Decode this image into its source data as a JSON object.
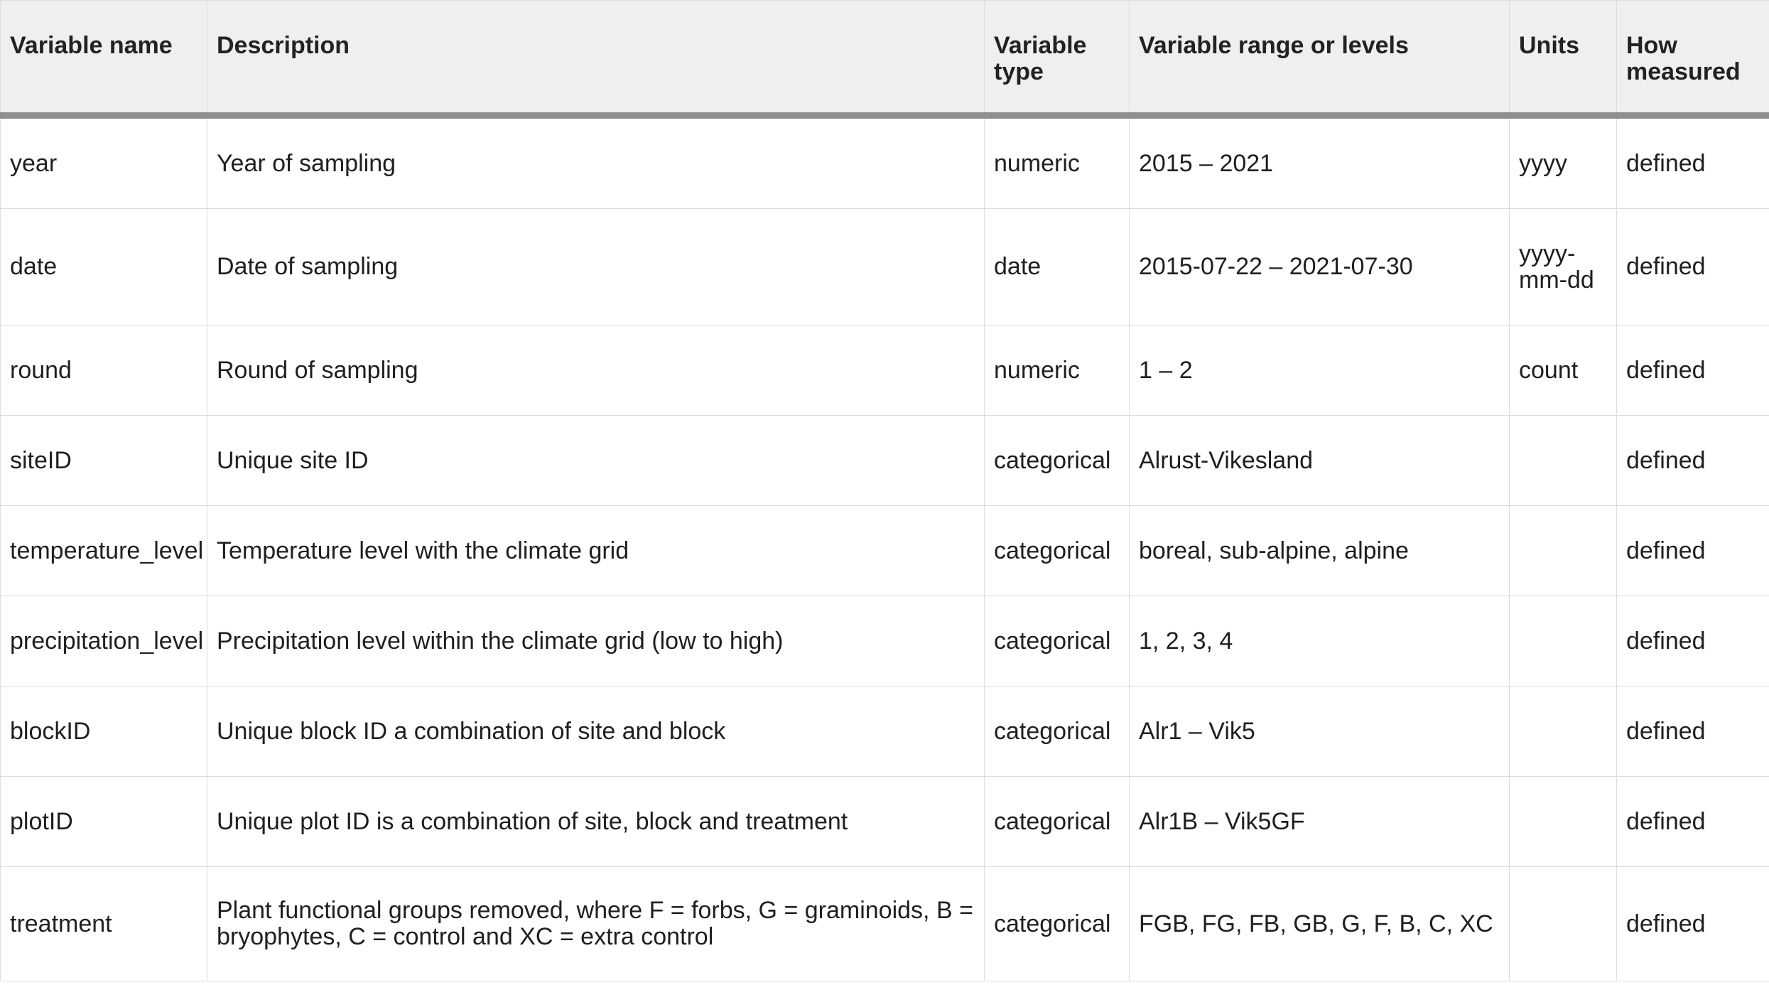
{
  "headers": {
    "variable_name": "Variable name",
    "description": "Description",
    "variable_type": "Variable type",
    "range": "Variable range or levels",
    "units": "Units",
    "how_measured": "How measured"
  },
  "rows": [
    {
      "name": "year",
      "description": "Year of sampling",
      "type": "numeric",
      "range": "2015 – 2021",
      "units": "yyyy",
      "how": "defined"
    },
    {
      "name": "date",
      "description": "Date of sampling",
      "type": "date",
      "range": "2015-07-22 – 2021-07-30",
      "units": "yyyy-mm-dd",
      "how": "defined"
    },
    {
      "name": "round",
      "description": "Round of sampling",
      "type": "numeric",
      "range": "1 – 2",
      "units": "count",
      "how": "defined"
    },
    {
      "name": "siteID",
      "description": "Unique site ID",
      "type": "categorical",
      "range": "Alrust-Vikesland",
      "units": "",
      "how": "defined"
    },
    {
      "name": "temperature_level",
      "description": "Temperature level with the climate grid",
      "type": "categorical",
      "range": "boreal, sub-alpine, alpine",
      "units": "",
      "how": "defined"
    },
    {
      "name": "precipitation_level",
      "description": "Precipitation level within the climate grid (low to high)",
      "type": "categorical",
      "range": "1, 2, 3, 4",
      "units": "",
      "how": "defined"
    },
    {
      "name": "blockID",
      "description": "Unique block ID a combination of site and block",
      "type": "categorical",
      "range": "Alr1 – Vik5",
      "units": "",
      "how": "defined"
    },
    {
      "name": "plotID",
      "description": "Unique plot ID is a combination of site, block and treatment",
      "type": "categorical",
      "range": "Alr1B – Vik5GF",
      "units": "",
      "how": "defined"
    },
    {
      "name": "treatment",
      "description": "Plant functional groups removed, where F = forbs, G = graminoids, B = bryophytes, C = control and XC = extra control",
      "type": "categorical",
      "range": "FGB, FG, FB, GB, G, F, B, C, XC",
      "units": "",
      "how": "defined"
    }
  ]
}
